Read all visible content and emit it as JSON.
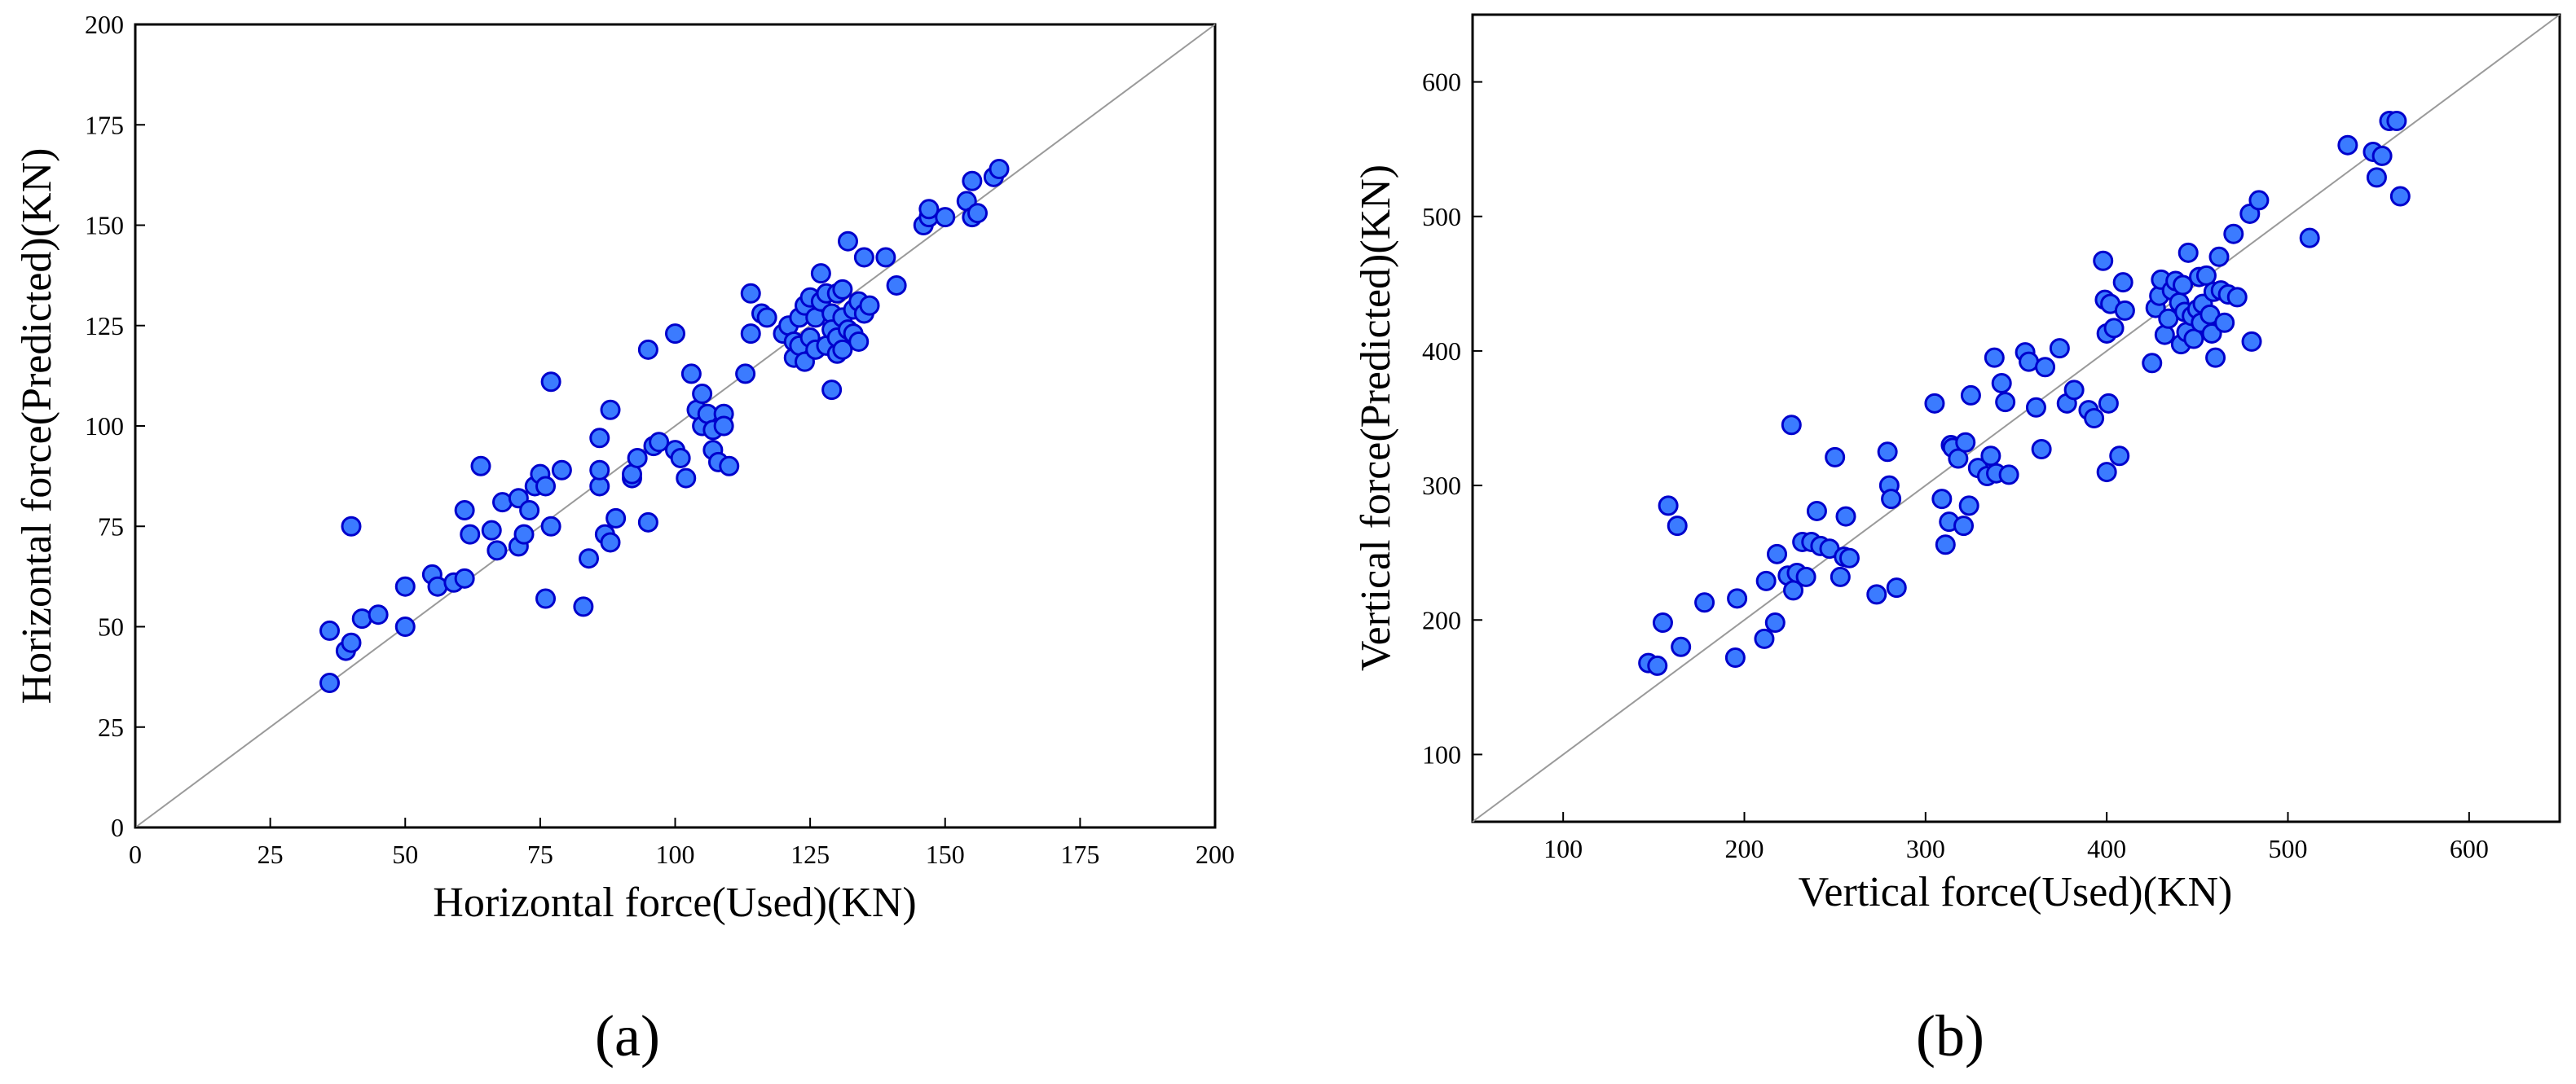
{
  "colors": {
    "marker_fill": "#3b7bff",
    "marker_stroke": "#0000cc",
    "diagonal": "#9a9a9a",
    "axis": "#000000"
  },
  "chart_data": [
    {
      "type": "scatter",
      "panel_label": "(a)",
      "title": "",
      "xlabel": "Horizontal force(Used)(KN)",
      "ylabel": "Horizontal force(Predicted)(KN)",
      "xlim": [
        0,
        200
      ],
      "ylim": [
        0,
        200
      ],
      "xticks": [
        0,
        25,
        50,
        75,
        100,
        125,
        150,
        175,
        200
      ],
      "yticks": [
        0,
        25,
        50,
        75,
        100,
        125,
        150,
        175,
        200
      ],
      "grid": false,
      "reference_line": "y = x",
      "x": [
        36,
        36,
        39,
        40,
        40,
        42,
        45,
        50,
        50,
        55,
        56,
        59,
        61,
        61,
        62,
        64,
        66,
        67,
        68,
        71,
        71,
        72,
        73,
        74,
        75,
        76,
        76,
        77,
        77,
        79,
        83,
        84,
        86,
        86,
        86,
        87,
        88,
        88,
        89,
        92,
        92,
        93,
        95,
        95,
        96,
        97,
        100,
        100,
        101,
        102,
        103,
        104,
        105,
        105,
        106,
        107,
        107,
        108,
        109,
        109,
        110,
        113,
        114,
        114,
        116,
        117,
        120,
        121,
        122,
        122,
        123,
        123,
        124,
        124,
        125,
        125,
        126,
        126,
        127,
        127,
        128,
        128,
        129,
        129,
        129,
        130,
        130,
        130,
        131,
        131,
        131,
        132,
        132,
        133,
        133,
        134,
        134,
        135,
        135,
        136,
        139,
        141,
        146,
        147,
        147,
        150,
        154,
        155,
        155,
        156,
        159,
        160
      ],
      "y": [
        49,
        36,
        44,
        46,
        75,
        52,
        53,
        60,
        50,
        63,
        60,
        61,
        79,
        62,
        73,
        90,
        74,
        69,
        81,
        70,
        82,
        73,
        79,
        85,
        88,
        57,
        85,
        75,
        111,
        89,
        55,
        67,
        97,
        85,
        89,
        73,
        71,
        104,
        77,
        87,
        88,
        92,
        119,
        76,
        95,
        96,
        123,
        94,
        92,
        87,
        113,
        104,
        108,
        100,
        103,
        94,
        99,
        91,
        103,
        100,
        90,
        113,
        123,
        133,
        128,
        127,
        123,
        125,
        117,
        121,
        120,
        127,
        130,
        116,
        122,
        132,
        119,
        127,
        138,
        131,
        120,
        133,
        128,
        109,
        124,
        118,
        133,
        122,
        119,
        127,
        134,
        146,
        124,
        123,
        129,
        131,
        121,
        142,
        128,
        130,
        142,
        135,
        150,
        152,
        154,
        152,
        156,
        161,
        152,
        153,
        162,
        164
      ]
    },
    {
      "type": "scatter",
      "panel_label": "(b)",
      "title": "",
      "xlabel": "Vertical force(Used)(KN)",
      "ylabel": "Vertical force(Predicted)(KN)",
      "xlim": [
        50,
        650
      ],
      "ylim": [
        50,
        650
      ],
      "xticks": [
        100,
        200,
        300,
        400,
        500,
        600
      ],
      "yticks": [
        100,
        200,
        300,
        400,
        500,
        600
      ],
      "grid": false,
      "reference_line": "y = x",
      "x": [
        147,
        152,
        155,
        158,
        163,
        165,
        178,
        195,
        196,
        211,
        212,
        217,
        218,
        224,
        226,
        227,
        229,
        232,
        234,
        237,
        240,
        242,
        247,
        250,
        253,
        255,
        256,
        258,
        273,
        279,
        280,
        281,
        284,
        305,
        309,
        311,
        313,
        314,
        315,
        318,
        321,
        322,
        324,
        325,
        329,
        334,
        336,
        338,
        339,
        342,
        344,
        346,
        355,
        357,
        361,
        364,
        366,
        374,
        378,
        382,
        390,
        393,
        398,
        399,
        400,
        400,
        401,
        402,
        404,
        407,
        409,
        410,
        425,
        427,
        429,
        430,
        432,
        434,
        436,
        438,
        440,
        441,
        442,
        443,
        444,
        445,
        447,
        448,
        450,
        451,
        452,
        453,
        455,
        457,
        458,
        459,
        460,
        462,
        463,
        465,
        467,
        470,
        472,
        479,
        480,
        484,
        512,
        533,
        547,
        549,
        552,
        556,
        560,
        562
      ],
      "y": [
        168,
        166,
        198,
        285,
        270,
        180,
        213,
        172,
        216,
        186,
        229,
        198,
        249,
        233,
        345,
        222,
        235,
        258,
        232,
        258,
        281,
        255,
        253,
        321,
        232,
        247,
        277,
        246,
        219,
        325,
        300,
        290,
        224,
        361,
        290,
        256,
        273,
        330,
        328,
        320,
        270,
        332,
        285,
        367,
        313,
        307,
        322,
        395,
        309,
        376,
        362,
        308,
        399,
        392,
        358,
        327,
        388,
        402,
        361,
        371,
        356,
        350,
        467,
        438,
        413,
        310,
        361,
        435,
        417,
        322,
        451,
        430,
        391,
        432,
        441,
        453,
        412,
        424,
        445,
        452,
        436,
        405,
        449,
        429,
        414,
        473,
        426,
        409,
        431,
        455,
        421,
        435,
        456,
        427,
        413,
        444,
        395,
        470,
        445,
        421,
        442,
        487,
        440,
        502,
        407,
        512,
        484,
        553,
        548,
        529,
        545,
        571,
        571,
        515
      ]
    }
  ]
}
